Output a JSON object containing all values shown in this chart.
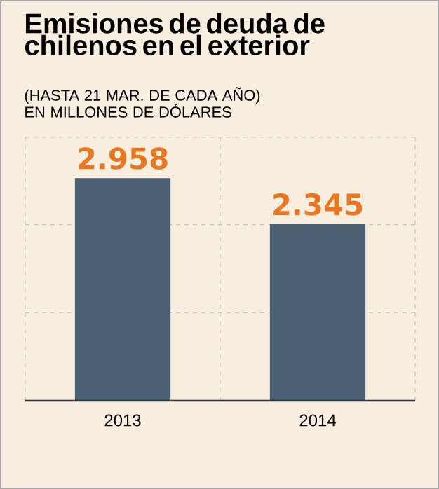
{
  "chart_data": {
    "type": "bar",
    "title": "Emisiones de deuda de chilenos en el exterior",
    "subtitle": "(HASTA 21 MAR. DE CADA AÑO) EN MILLONES DE DÓLARES",
    "categories": [
      "2013",
      "2014"
    ],
    "values": [
      2958,
      2345
    ],
    "value_labels": [
      "2.958",
      "2.345"
    ],
    "color": "#4a6174",
    "ylim": [
      0,
      3500
    ],
    "yticks": [
      {
        "value": 1170,
        "label": null
      },
      {
        "value": 2340,
        "label": null
      },
      {
        "value": 3500,
        "label": null
      }
    ],
    "grid": true,
    "tick_labels": "x"
  }
}
